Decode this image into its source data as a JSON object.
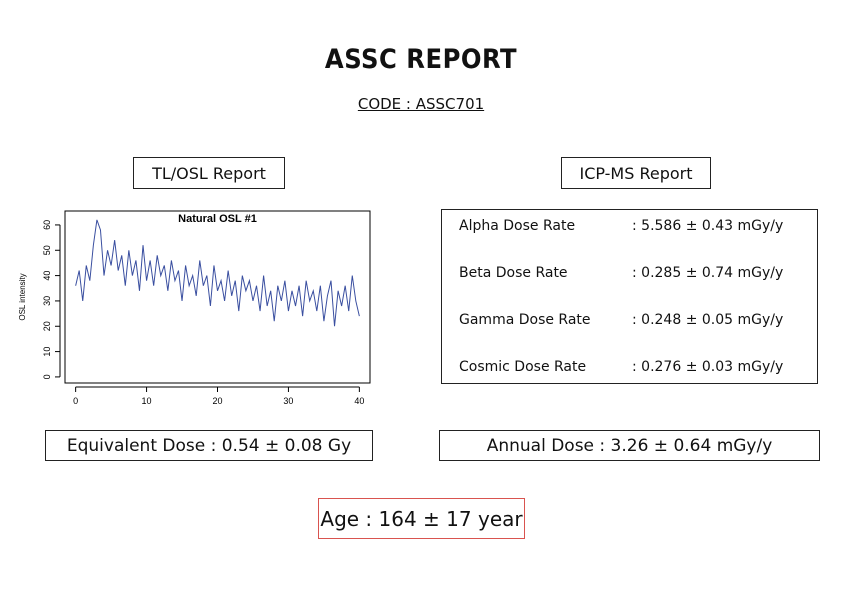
{
  "header": {
    "title": "ASSC REPORT",
    "code": "CODE : ASSC701"
  },
  "tl_osl": {
    "heading": "TL/OSL Report",
    "equivalent_dose": "Equivalent Dose : 0.54 ± 0.08 Gy"
  },
  "chart_data": {
    "type": "line",
    "title": "Natural OSL #1",
    "y_label": "OSL intensity",
    "color": "#3a4fa0",
    "x": [
      0,
      0.5,
      1,
      1.5,
      2,
      2.5,
      3,
      3.5,
      4,
      4.5,
      5,
      5.5,
      6,
      6.5,
      7,
      7.5,
      8,
      8.5,
      9,
      9.5,
      10,
      10.5,
      11,
      11.5,
      12,
      12.5,
      13,
      13.5,
      14,
      14.5,
      15,
      15.5,
      16,
      16.5,
      17,
      17.5,
      18,
      18.5,
      19,
      19.5,
      20,
      20.5,
      21,
      21.5,
      22,
      22.5,
      23,
      23.5,
      24,
      24.5,
      25,
      25.5,
      26,
      26.5,
      27,
      27.5,
      28,
      28.5,
      29,
      29.5,
      30,
      30.5,
      31,
      31.5,
      32,
      32.5,
      33,
      33.5,
      34,
      34.5,
      35,
      35.5,
      36,
      36.5,
      37,
      37.5,
      38,
      38.5,
      39,
      39.5,
      40
    ],
    "values": [
      36,
      42,
      30,
      44,
      38,
      52,
      62,
      58,
      40,
      50,
      44,
      54,
      42,
      48,
      36,
      50,
      40,
      46,
      34,
      52,
      38,
      46,
      36,
      48,
      40,
      44,
      34,
      46,
      38,
      42,
      30,
      44,
      36,
      40,
      32,
      46,
      36,
      40,
      28,
      44,
      34,
      38,
      30,
      42,
      32,
      38,
      26,
      40,
      34,
      38,
      30,
      36,
      26,
      40,
      28,
      34,
      22,
      36,
      30,
      38,
      26,
      34,
      28,
      36,
      24,
      38,
      30,
      34,
      26,
      36,
      22,
      32,
      38,
      20,
      34,
      28,
      36,
      26,
      40,
      30,
      24
    ],
    "xlim": [
      -1.5,
      41.5
    ],
    "ylim": [
      -2.4,
      65.5
    ],
    "xticks": [
      0,
      10,
      20,
      30,
      40
    ],
    "yticks": [
      0,
      10,
      20,
      30,
      40,
      50,
      60
    ]
  },
  "icp_ms": {
    "heading": "ICP-MS Report",
    "rows": [
      [
        "Alpha Dose Rate",
        ": 5.586 ± 0.43 mGy/y"
      ],
      [
        "Beta Dose Rate",
        ": 0.285 ± 0.74 mGy/y"
      ],
      [
        "Gamma Dose Rate",
        ": 0.248 ± 0.05 mGy/y"
      ],
      [
        "Cosmic Dose Rate",
        ": 0.276 ± 0.03 mGy/y"
      ]
    ],
    "annual_dose": "Annual Dose : 3.26 ± 0.64 mGy/y"
  },
  "age": "Age : 164 ± 17 year"
}
